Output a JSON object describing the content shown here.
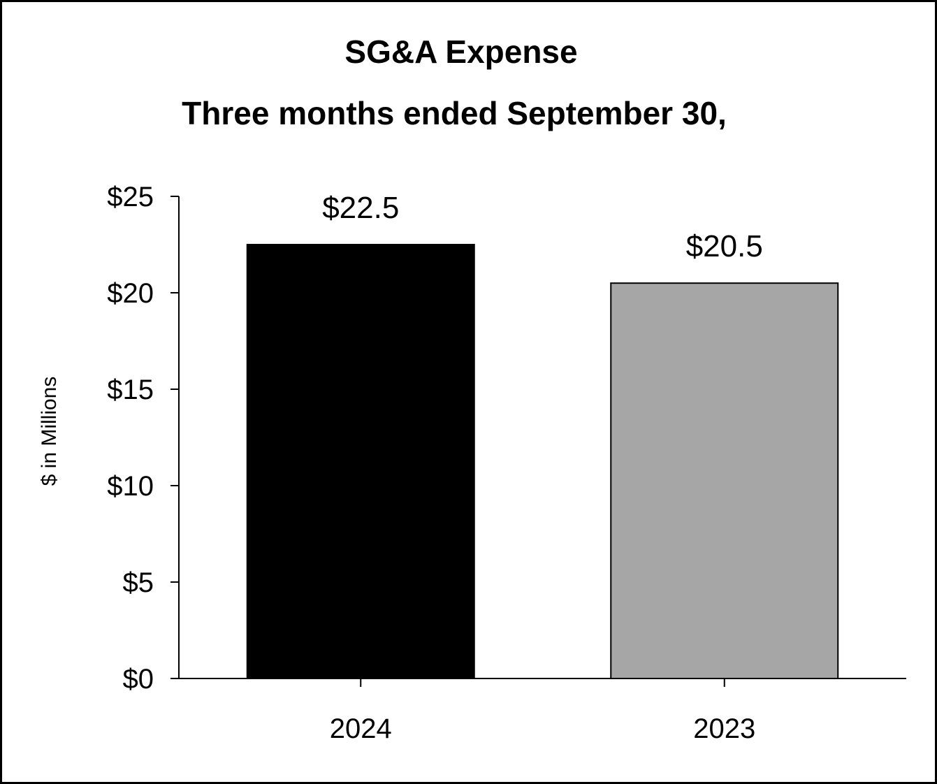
{
  "chart_data": {
    "type": "bar",
    "title": "SG&A Expense",
    "subtitle": "Three months ended September 30,",
    "ylabel": "$ in Millions",
    "xlabel": "",
    "categories": [
      "2024",
      "2023"
    ],
    "values": [
      22.5,
      20.5
    ],
    "data_labels": [
      "$22.5",
      "$20.5"
    ],
    "bar_colors": [
      "#000000",
      "#a6a6a6"
    ],
    "ylim": [
      0,
      25
    ],
    "yticks": [
      0,
      5,
      10,
      15,
      20,
      25
    ],
    "ytick_labels": [
      "$0",
      "$5",
      "$10",
      "$15",
      "$20",
      "$25"
    ],
    "grid": false,
    "legend": "none"
  }
}
